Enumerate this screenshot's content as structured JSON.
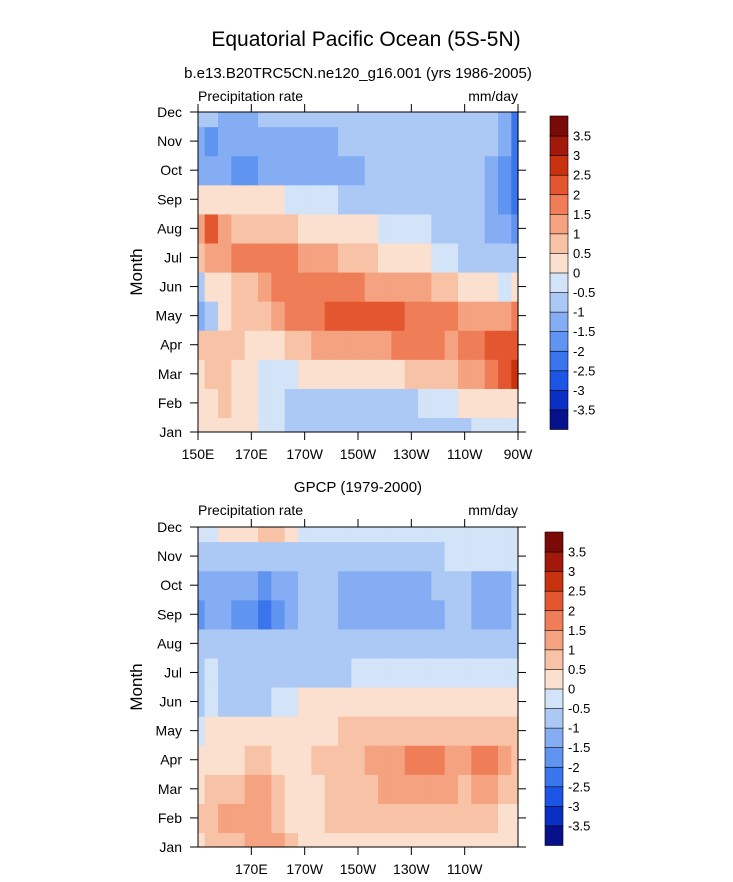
{
  "figure": {
    "title": "Equatorial Pacific Ocean (5S-5N)"
  },
  "chart_data": [
    {
      "type": "heatmap",
      "title": "b.e13.B20TRC5CN.ne120_g16.001 (yrs 1986-2005)",
      "left_label": "Precipitation rate",
      "right_label": "mm/day",
      "ylabel": "Month",
      "xlim": [
        150,
        270
      ],
      "x_ticks": [
        {
          "value": 150,
          "label": "150E"
        },
        {
          "value": 170,
          "label": "170E"
        },
        {
          "value": 190,
          "label": "170W"
        },
        {
          "value": 210,
          "label": "150W"
        },
        {
          "value": 230,
          "label": "130W"
        },
        {
          "value": 250,
          "label": "110W"
        },
        {
          "value": 270,
          "label": "90W"
        }
      ],
      "months": [
        "Jan",
        "Feb",
        "Mar",
        "Apr",
        "May",
        "Jun",
        "Jul",
        "Aug",
        "Sep",
        "Oct",
        "Nov",
        "Dec"
      ],
      "colorbar": {
        "levels": [
          -3.5,
          -3,
          -2.5,
          -2,
          -1.5,
          -1,
          -0.5,
          0,
          0.5,
          1,
          1.5,
          2,
          2.5,
          3,
          3.5
        ],
        "labels": [
          "-3.5",
          "-3",
          "-2.5",
          "-2",
          "-1.5",
          "-1",
          "-0.5",
          "0",
          "0.5",
          "1",
          "1.5",
          "2",
          "2.5",
          "3",
          "3.5"
        ],
        "colors": [
          "#08118c",
          "#0a2fc4",
          "#1c55e6",
          "#3a75ee",
          "#6094f1",
          "#85adf3",
          "#acc9f5",
          "#d3e3f8",
          "#fbe0cf",
          "#f8c2a6",
          "#f4a27f",
          "#ef7e58",
          "#e4562f",
          "#c9320f",
          "#a2180a",
          "#7a0a08"
        ]
      },
      "grid": {
        "lon": [
          150,
          155,
          160,
          165,
          170,
          175,
          180,
          185,
          190,
          195,
          200,
          205,
          210,
          215,
          220,
          225,
          230,
          235,
          240,
          245,
          250,
          255,
          260,
          265,
          270
        ],
        "rows": [
          [
            1,
            1,
            1,
            1,
            1,
            0,
            0,
            -1,
            -1,
            -1,
            -1,
            -1,
            -1,
            -1,
            -1,
            -1,
            -1,
            -1,
            -1,
            -1,
            -1,
            0,
            0,
            0,
            0
          ],
          [
            1,
            1,
            2,
            1,
            1,
            0,
            0,
            -1,
            -1,
            -1,
            -1,
            -1,
            -1,
            -1,
            -1,
            -1,
            -1,
            0,
            0,
            0,
            1,
            1,
            1,
            1,
            1
          ],
          [
            1,
            2,
            2,
            1,
            1,
            0,
            0,
            0,
            1,
            1,
            1,
            1,
            1,
            1,
            1,
            1,
            2,
            2,
            2,
            2,
            3,
            3,
            4,
            5,
            6
          ],
          [
            2,
            2,
            2,
            2,
            1,
            1,
            1,
            2,
            2,
            3,
            3,
            3,
            3,
            3,
            3,
            4,
            4,
            4,
            4,
            3,
            4,
            4,
            5,
            5,
            5
          ],
          [
            -2,
            -1,
            1,
            2,
            2,
            2,
            3,
            4,
            4,
            4,
            5,
            5,
            5,
            5,
            5,
            5,
            4,
            4,
            4,
            4,
            3,
            3,
            3,
            3,
            4
          ],
          [
            -1,
            1,
            1,
            2,
            2,
            3,
            4,
            4,
            4,
            4,
            4,
            4,
            4,
            3,
            3,
            3,
            3,
            3,
            2,
            2,
            1,
            1,
            1,
            0,
            1
          ],
          [
            2,
            3,
            3,
            4,
            4,
            4,
            4,
            4,
            3,
            3,
            3,
            2,
            2,
            2,
            1,
            1,
            1,
            1,
            0,
            0,
            -1,
            -1,
            -1,
            -1,
            -1
          ],
          [
            3,
            5,
            3,
            2,
            2,
            2,
            2,
            2,
            1,
            1,
            1,
            1,
            1,
            1,
            0,
            0,
            0,
            0,
            -1,
            -1,
            -1,
            -1,
            -2,
            -2,
            -3
          ],
          [
            1,
            1,
            1,
            1,
            1,
            1,
            1,
            0,
            0,
            0,
            0,
            -1,
            -1,
            -1,
            -1,
            -1,
            -1,
            -1,
            -1,
            -1,
            -1,
            -1,
            -2,
            -3,
            -4
          ],
          [
            -2,
            -2,
            -2,
            -3,
            -3,
            -2,
            -2,
            -2,
            -2,
            -2,
            -2,
            -2,
            -2,
            -1,
            -1,
            -1,
            -1,
            -1,
            -1,
            -1,
            -1,
            -1,
            -2,
            -3,
            -4
          ],
          [
            -2,
            -3,
            -2,
            -2,
            -2,
            -2,
            -2,
            -2,
            -2,
            -2,
            -2,
            -1,
            -1,
            -1,
            -1,
            -1,
            -1,
            -1,
            -1,
            -1,
            -1,
            -1,
            -1,
            -2,
            -4
          ],
          [
            -1,
            -1,
            -2,
            -2,
            -2,
            -1,
            -1,
            -1,
            -1,
            -1,
            -1,
            -1,
            -1,
            -1,
            -1,
            -1,
            -1,
            -1,
            -1,
            -1,
            -1,
            -1,
            -1,
            -2,
            -4
          ]
        ]
      }
    },
    {
      "type": "heatmap",
      "title": "GPCP (1979-2000)",
      "left_label": "Precipitation rate",
      "right_label": "mm/day",
      "ylabel": "Month",
      "xlim": [
        150,
        270
      ],
      "x_ticks": [
        {
          "value": 170,
          "label": "170E"
        },
        {
          "value": 190,
          "label": "170W"
        },
        {
          "value": 210,
          "label": "150W"
        },
        {
          "value": 230,
          "label": "130W"
        },
        {
          "value": 250,
          "label": "110W"
        }
      ],
      "months": [
        "Jan",
        "Feb",
        "Mar",
        "Apr",
        "May",
        "Jun",
        "Jul",
        "Aug",
        "Sep",
        "Oct",
        "Nov",
        "Dec"
      ],
      "colorbar": {
        "levels": [
          -3.5,
          -3,
          -2.5,
          -2,
          -1.5,
          -1,
          -0.5,
          0,
          0.5,
          1,
          1.5,
          2,
          2.5,
          3,
          3.5
        ],
        "labels": [
          "-3.5",
          "-3",
          "-2.5",
          "-2",
          "-1.5",
          "-1",
          "-0.5",
          "0",
          "0.5",
          "1",
          "1.5",
          "2",
          "2.5",
          "3",
          "3.5"
        ],
        "colors": [
          "#08118c",
          "#0a2fc4",
          "#1c55e6",
          "#3a75ee",
          "#6094f1",
          "#85adf3",
          "#acc9f5",
          "#d3e3f8",
          "#fbe0cf",
          "#f8c2a6",
          "#f4a27f",
          "#ef7e58",
          "#e4562f",
          "#c9320f",
          "#a2180a",
          "#7a0a08"
        ]
      },
      "grid": {
        "lon": [
          150,
          155,
          160,
          165,
          170,
          175,
          180,
          185,
          190,
          195,
          200,
          205,
          210,
          215,
          220,
          225,
          230,
          235,
          240,
          245,
          250,
          255,
          260,
          265,
          270
        ],
        "rows": [
          [
            1,
            2,
            2,
            2,
            3,
            3,
            3,
            2,
            1,
            1,
            1,
            1,
            1,
            1,
            1,
            1,
            1,
            1,
            1,
            1,
            1,
            1,
            1,
            1,
            1
          ],
          [
            2,
            2,
            3,
            3,
            3,
            3,
            2,
            1,
            1,
            1,
            2,
            2,
            2,
            2,
            2,
            2,
            2,
            2,
            2,
            2,
            2,
            2,
            2,
            1,
            1
          ],
          [
            1,
            2,
            2,
            2,
            3,
            3,
            2,
            1,
            1,
            1,
            2,
            2,
            2,
            2,
            3,
            3,
            3,
            3,
            3,
            3,
            2,
            3,
            3,
            2,
            2
          ],
          [
            1,
            1,
            1,
            1,
            2,
            2,
            1,
            1,
            1,
            2,
            2,
            2,
            2,
            3,
            3,
            3,
            4,
            4,
            4,
            3,
            3,
            4,
            4,
            3,
            2
          ],
          [
            0,
            1,
            1,
            1,
            1,
            1,
            1,
            1,
            1,
            1,
            1,
            2,
            2,
            2,
            2,
            2,
            2,
            2,
            2,
            2,
            2,
            2,
            2,
            2,
            2
          ],
          [
            -1,
            0,
            -1,
            -1,
            -1,
            -1,
            0,
            0,
            1,
            1,
            1,
            1,
            1,
            1,
            1,
            1,
            1,
            1,
            1,
            1,
            1,
            1,
            1,
            1,
            1
          ],
          [
            -1,
            0,
            -1,
            -1,
            -1,
            -1,
            -1,
            -1,
            -1,
            -1,
            -1,
            -1,
            0,
            0,
            0,
            0,
            0,
            0,
            0,
            0,
            0,
            0,
            0,
            0,
            0
          ],
          [
            -1,
            -1,
            -1,
            -1,
            -1,
            -1,
            -1,
            -1,
            -1,
            -1,
            -1,
            -1,
            -1,
            -1,
            -1,
            -1,
            -1,
            -1,
            -1,
            -1,
            -1,
            -1,
            -1,
            -1,
            -1
          ],
          [
            -3,
            -2,
            -2,
            -3,
            -3,
            -4,
            -3,
            -2,
            -1,
            -1,
            -1,
            -2,
            -2,
            -2,
            -2,
            -2,
            -2,
            -2,
            -2,
            -1,
            -1,
            -2,
            -2,
            -2,
            -1
          ],
          [
            -2,
            -2,
            -2,
            -2,
            -2,
            -3,
            -2,
            -2,
            -1,
            -1,
            -1,
            -2,
            -2,
            -2,
            -2,
            -2,
            -2,
            -2,
            -1,
            -1,
            -1,
            -2,
            -2,
            -2,
            -1
          ],
          [
            -1,
            -1,
            -1,
            -1,
            -1,
            -1,
            -1,
            -1,
            -1,
            -1,
            -1,
            -1,
            -1,
            -1,
            -1,
            -1,
            -1,
            -1,
            -1,
            0,
            0,
            0,
            0,
            0,
            0
          ],
          [
            0,
            0,
            1,
            1,
            1,
            2,
            2,
            1,
            0,
            0,
            0,
            0,
            0,
            0,
            0,
            0,
            0,
            0,
            0,
            0,
            0,
            0,
            0,
            0,
            0
          ]
        ]
      }
    }
  ]
}
